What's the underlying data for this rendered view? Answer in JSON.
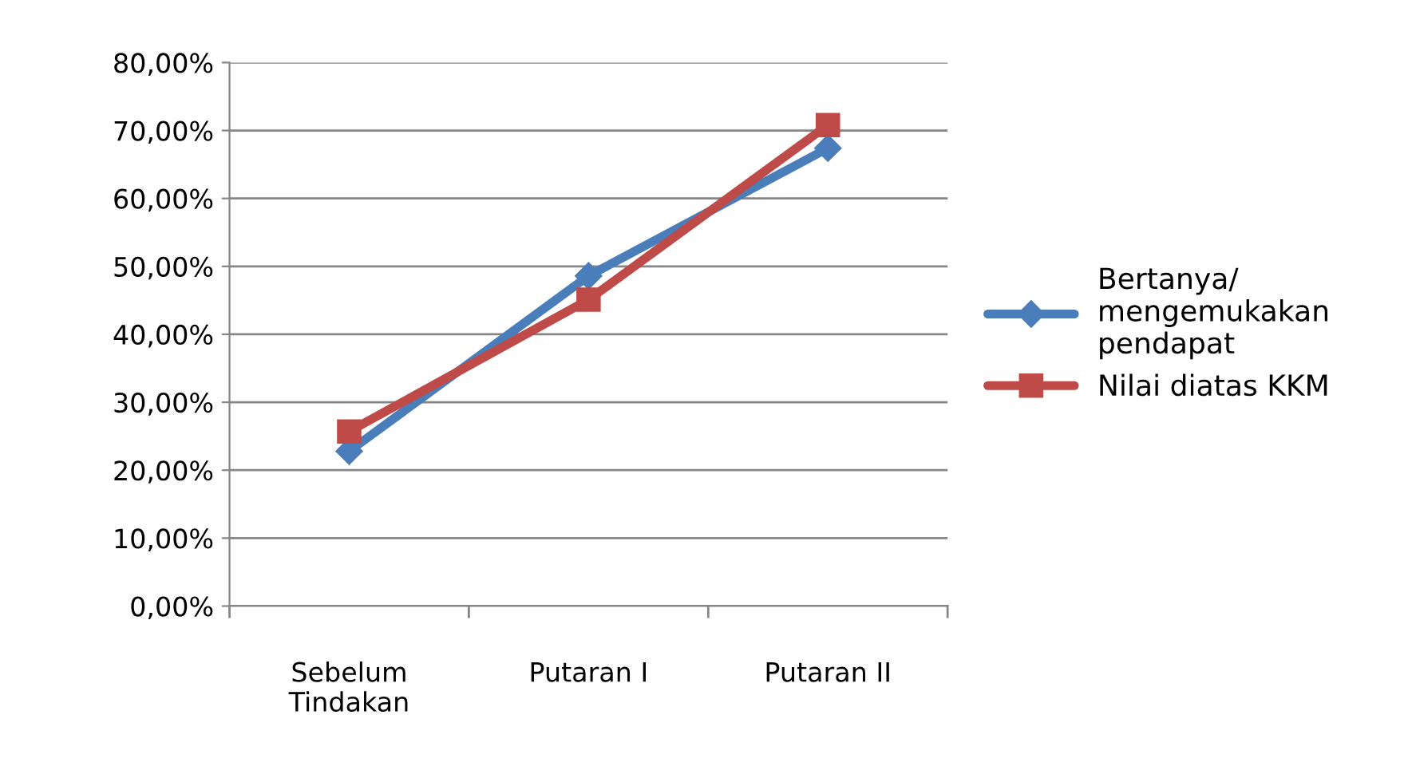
{
  "chart_data": {
    "type": "line",
    "categories": [
      "Sebelum\nTindakan",
      "Putaran I",
      "Putaran II"
    ],
    "series": [
      {
        "name": "Bertanya/\nmengemukakan\npendapat",
        "color": "#4a7ebb",
        "marker": "diamond",
        "values": [
          22.8,
          48.6,
          67.4
        ]
      },
      {
        "name": "Nilai diatas KKM",
        "color": "#be4b48",
        "marker": "square",
        "values": [
          25.7,
          45.1,
          70.8
        ]
      }
    ],
    "ylim": [
      0,
      80
    ],
    "yticks": [
      {
        "value": 0,
        "label": "0,00%"
      },
      {
        "value": 10,
        "label": "10,00%"
      },
      {
        "value": 20,
        "label": "20,00%"
      },
      {
        "value": 30,
        "label": "30,00%"
      },
      {
        "value": 40,
        "label": "40,00%"
      },
      {
        "value": 50,
        "label": "50,00%"
      },
      {
        "value": 60,
        "label": "60,00%"
      },
      {
        "value": 70,
        "label": "70,00%"
      },
      {
        "value": 80,
        "label": "80,00%"
      }
    ],
    "grid": "y",
    "legend": "right",
    "line_style": "solid"
  }
}
